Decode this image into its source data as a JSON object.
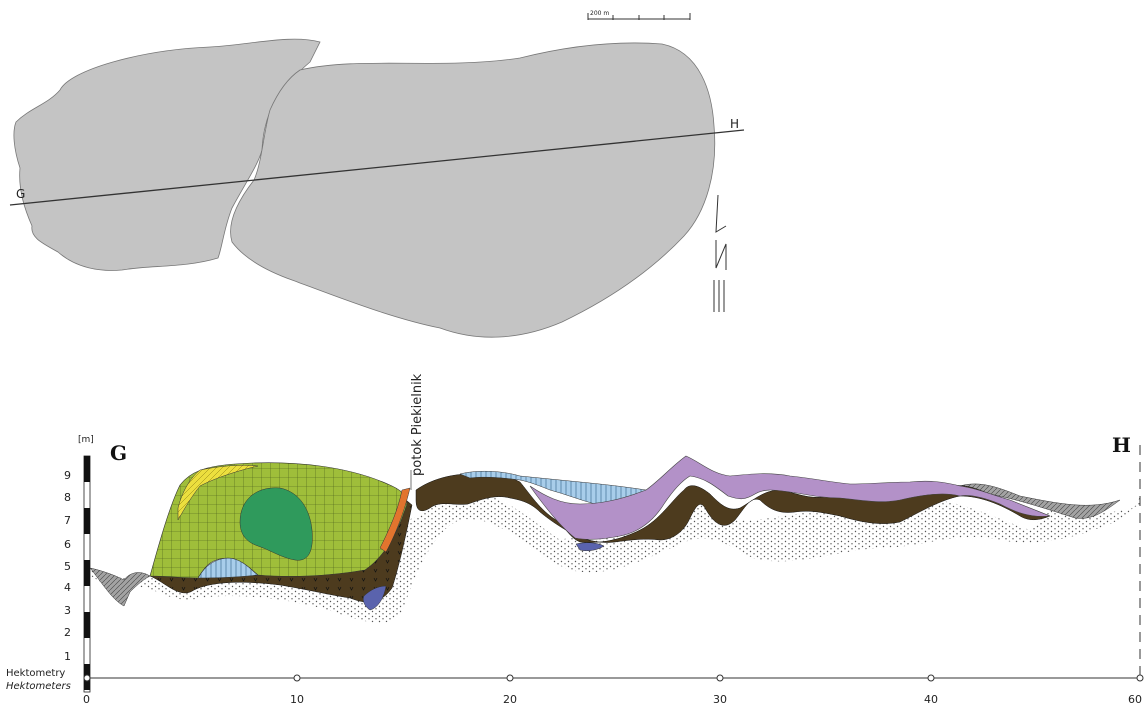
{
  "map": {
    "scale_label": "200 m",
    "point_g": "G",
    "point_h": "H"
  },
  "section": {
    "unit": "[m]",
    "point_g": "G",
    "point_h": "H",
    "stream_label": "potok Piekielnik",
    "depth_ticks": [
      "1",
      "2",
      "3",
      "4",
      "5",
      "6",
      "7",
      "8",
      "9"
    ],
    "distance_ticks": [
      "0",
      "10",
      "20",
      "30",
      "40",
      "60"
    ],
    "distance_caption_pl": "Hektometry",
    "distance_caption_en": "Hektometers"
  },
  "colors": {
    "map_fill": "#c4c4c4",
    "peat_olive": "#9fbe3a",
    "gyttja_green": "#2f9a5c",
    "sand_yellow": "#ecdf3e",
    "mud_brown": "#4d3b1e",
    "clay_lightblue": "#a8cdea",
    "violet": "#b391c8",
    "orange": "#e2742e",
    "darkblue": "#5a63ad",
    "gray": "#a3a3a3"
  }
}
